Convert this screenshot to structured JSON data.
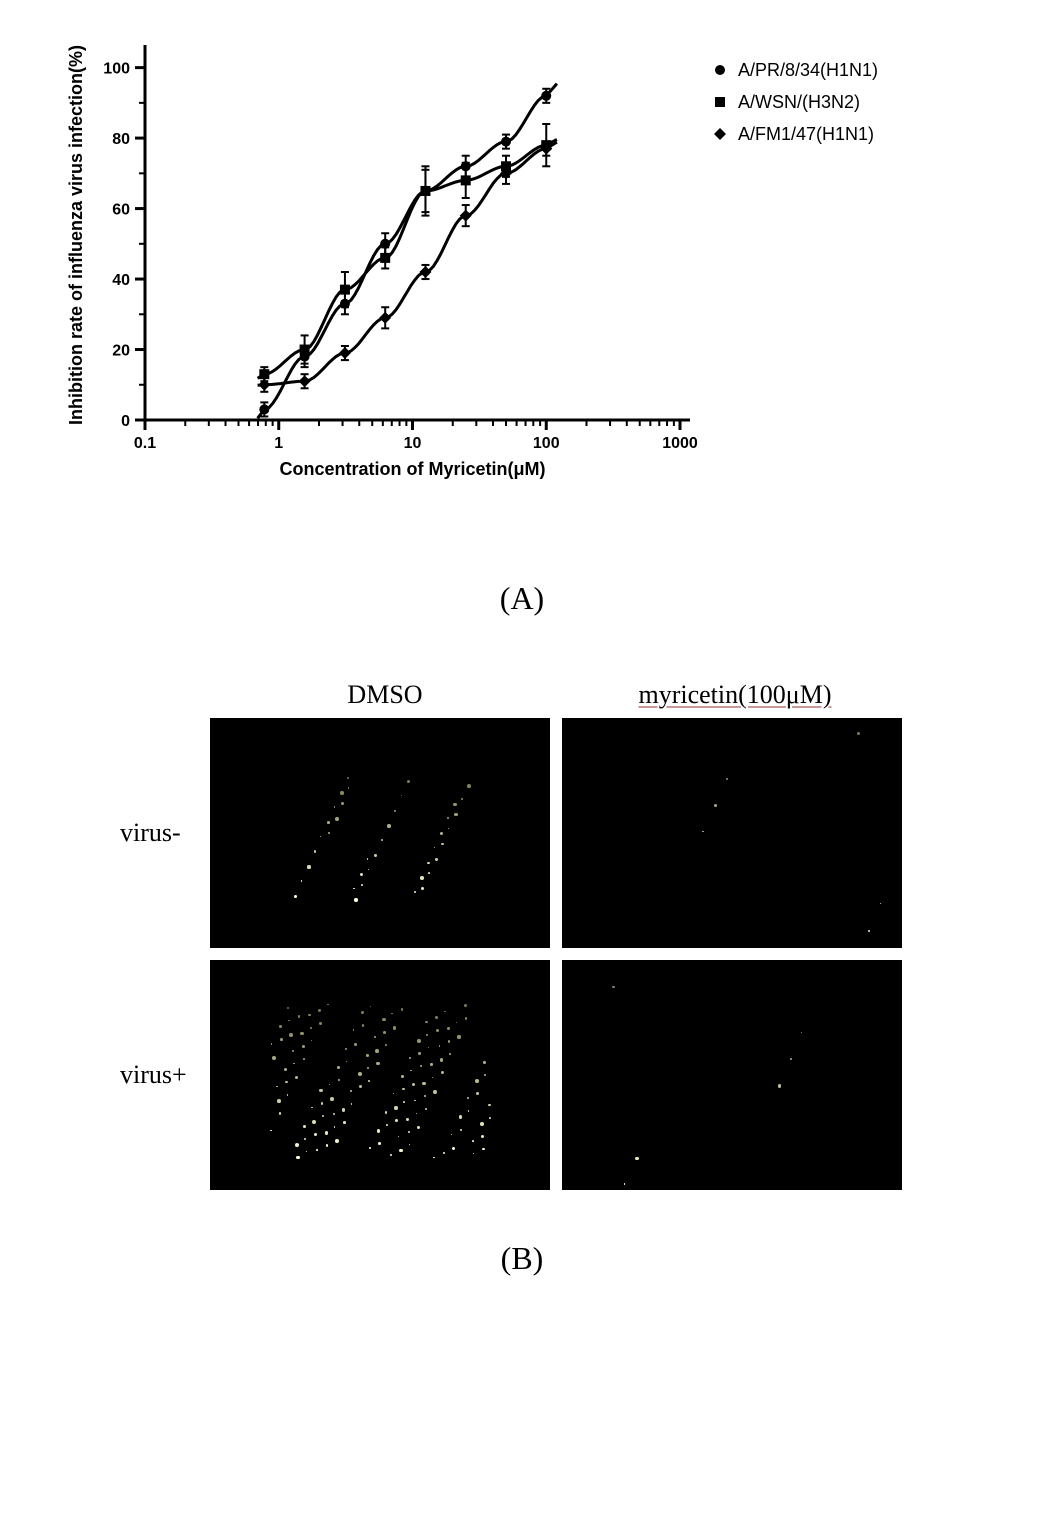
{
  "chart": {
    "type": "scatter-line-log",
    "ylabel": "Inhibition rate of influenza virus infection(%)",
    "xlabel": "Concentration of Myricetin(μM)",
    "xscale": "log",
    "xlim": [
      0.1,
      1000
    ],
    "ylim": [
      0,
      105
    ],
    "xtick_labels": [
      "0.1",
      "1",
      "10",
      "100",
      "1000"
    ],
    "ytick_labels": [
      "0",
      "20",
      "40",
      "60",
      "80",
      "100"
    ],
    "ytick_step": 20,
    "label_fontsize": 18,
    "tick_fontsize": 16,
    "axis_color": "#000000",
    "axis_linewidth": 3,
    "series": [
      {
        "name": "A/PR/8/34(H1N1)",
        "marker": "circle",
        "color": "#000000",
        "marker_size": 10,
        "line_width": 3,
        "x": [
          0.78,
          1.56,
          3.125,
          6.25,
          12.5,
          25,
          50,
          100
        ],
        "y": [
          3,
          18,
          33,
          50,
          65,
          72,
          79,
          92
        ],
        "y_err": [
          2,
          3,
          3,
          3,
          6,
          3,
          2,
          2
        ]
      },
      {
        "name": "A/WSN/(H3N2)",
        "marker": "square",
        "color": "#000000",
        "marker_size": 10,
        "line_width": 3,
        "x": [
          0.78,
          1.56,
          3.125,
          6.25,
          12.5,
          25,
          50,
          100
        ],
        "y": [
          13,
          20,
          37,
          46,
          65,
          68,
          72,
          78
        ],
        "y_err": [
          2,
          4,
          5,
          3,
          7,
          5,
          3,
          6
        ]
      },
      {
        "name": "A/FM1/47(H1N1)",
        "marker": "diamond",
        "color": "#000000",
        "marker_size": 10,
        "line_width": 3,
        "x": [
          0.78,
          1.56,
          3.125,
          6.25,
          12.5,
          25,
          50,
          100
        ],
        "y": [
          10,
          11,
          19,
          29,
          42,
          58,
          70,
          77
        ],
        "y_err": [
          2,
          2,
          2,
          3,
          2,
          3,
          3,
          2
        ]
      }
    ],
    "legend_position": "right-outside",
    "plot_background": "#ffffff"
  },
  "panel_a_label": "(A)",
  "panel_b_label": "(B)",
  "micrograph_panel": {
    "column_headers": [
      "DMSO",
      "myricetin(100μM)"
    ],
    "row_labels": [
      "virus-",
      "virus+"
    ],
    "cell_background": "#000000",
    "cells": [
      {
        "row": 0,
        "col": 0,
        "speckle_density": "low"
      },
      {
        "row": 0,
        "col": 1,
        "speckle_density": "very-low"
      },
      {
        "row": 1,
        "col": 0,
        "speckle_density": "medium"
      },
      {
        "row": 1,
        "col": 1,
        "speckle_density": "very-low"
      }
    ],
    "header_fontsize": 26,
    "row_label_fontsize": 26,
    "header2_underline_color": "#cc9999"
  }
}
